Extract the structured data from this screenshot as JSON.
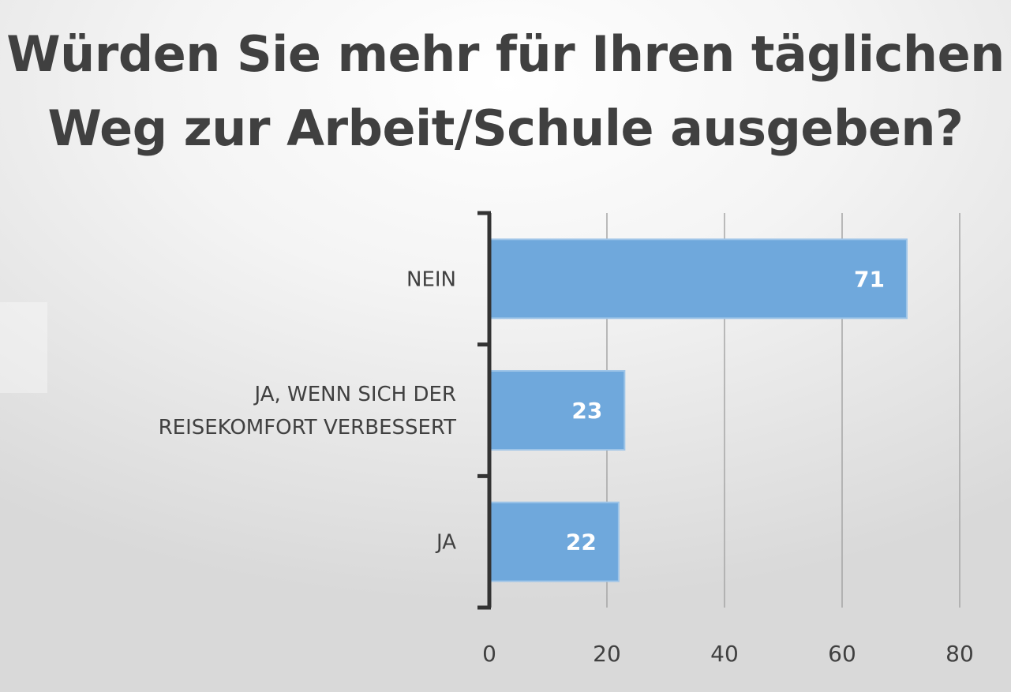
{
  "chart_data": {
    "type": "bar",
    "orientation": "horizontal",
    "title": "Würden Sie mehr für Ihren täglichen Weg zur Arbeit/Schule ausgeben?",
    "title_lines": [
      "Würden Sie mehr für Ihren täglichen",
      "Weg zur Arbeit/Schule ausgeben?"
    ],
    "categories": [
      "NEIN",
      "JA, WENN SICH DER REISEKOMFORT VERBESSERT",
      "JA"
    ],
    "category_label_lines": [
      [
        "NEIN"
      ],
      [
        "JA, WENN SICH DER",
        "REISEKOMFORT VERBESSERT"
      ],
      [
        "JA"
      ]
    ],
    "values": [
      71,
      23,
      22
    ],
    "data_labels": [
      "71",
      "23",
      "22"
    ],
    "xlim": [
      0,
      80
    ],
    "x_ticks": [
      0,
      20,
      40,
      60,
      80
    ],
    "x_tick_labels": [
      "0",
      "20",
      "40",
      "60",
      "80"
    ],
    "xlabel": "",
    "ylabel": "",
    "grid": true,
    "legend": "none",
    "colors": {
      "bar_fill": "#6fa8dc",
      "bar_stroke": "#9fc5e8",
      "axis": "#333333",
      "grid": "#a6a6a6",
      "title": "#404040",
      "text": "#404040",
      "data_label": "#ffffff"
    }
  }
}
